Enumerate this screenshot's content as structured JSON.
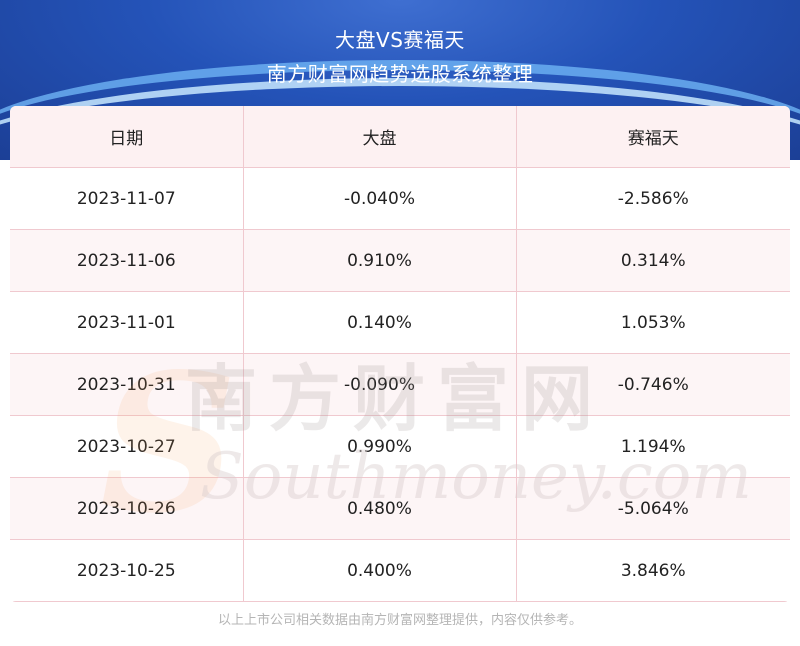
{
  "header": {
    "title_line1": "大盘VS赛福天",
    "title_line2": "南方财富网趋势选股系统整理"
  },
  "table": {
    "columns": [
      "日期",
      "大盘",
      "赛福天"
    ],
    "rows": [
      [
        "2023-11-07",
        "-0.040%",
        "-2.586%"
      ],
      [
        "2023-11-06",
        "0.910%",
        "0.314%"
      ],
      [
        "2023-11-01",
        "0.140%",
        "1.053%"
      ],
      [
        "2023-10-31",
        "-0.090%",
        "-0.746%"
      ],
      [
        "2023-10-27",
        "0.990%",
        "1.194%"
      ],
      [
        "2023-10-26",
        "0.480%",
        "-5.064%"
      ],
      [
        "2023-10-25",
        "0.400%",
        "3.846%"
      ]
    ]
  },
  "watermark": {
    "cn": "南方财富网",
    "en": "Southmoney.com"
  },
  "footer": "以上上市公司相关数据由南方财富网整理提供，内容仅供参考。",
  "colors": {
    "header_bg": "#2453b8",
    "row_alt": "#fdf5f6",
    "border": "#f0c9cf"
  }
}
